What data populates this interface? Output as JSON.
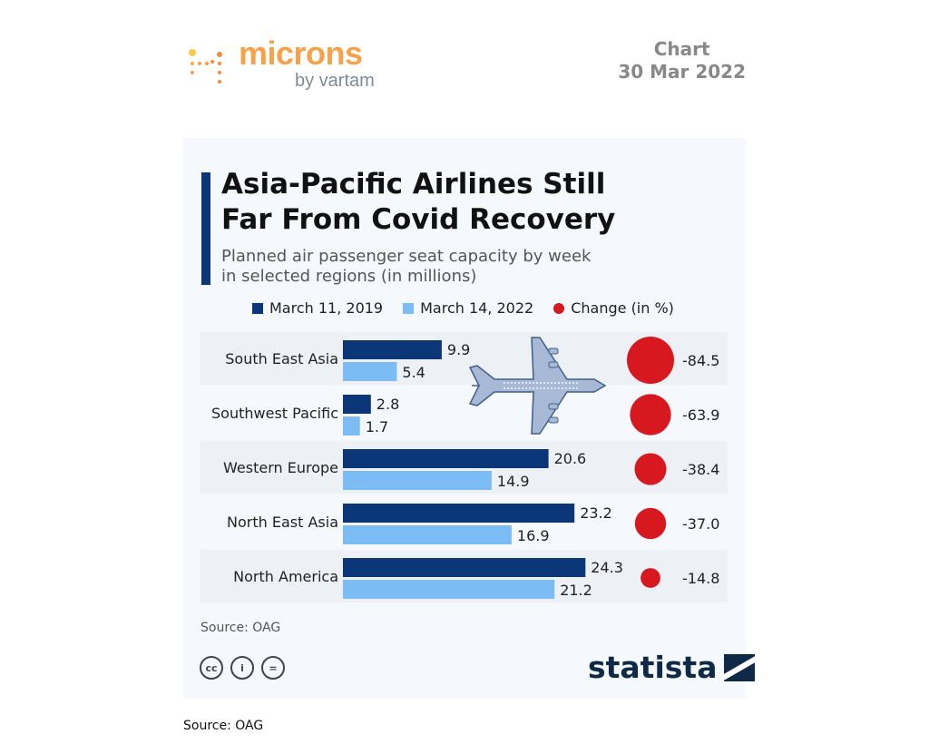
{
  "header": {
    "logo_name": "microns",
    "logo_sub": "by vartam",
    "kind": "Chart",
    "date": "30 Mar 2022"
  },
  "chart_data": {
    "type": "bar",
    "title": "Asia-Pacific Airlines Still Far From Covid Recovery",
    "title_line1": "Asia-Pacific Airlines Still",
    "title_line2": "Far From Covid Recovery",
    "subtitle_line1": "Planned air passenger seat capacity by week",
    "subtitle_line2": "in selected regions (in millions)",
    "legend": [
      "March 11, 2019",
      "March 14, 2022",
      "Change (in %)"
    ],
    "categories": [
      "South East Asia",
      "Southwest Pacific",
      "Western Europe",
      "North East Asia",
      "North America"
    ],
    "series": [
      {
        "name": "March 11, 2019",
        "values": [
          9.9,
          2.8,
          20.6,
          23.2,
          24.3
        ]
      },
      {
        "name": "March 14, 2022",
        "values": [
          5.4,
          1.7,
          14.9,
          16.9,
          21.2
        ]
      },
      {
        "name": "Change (in %)",
        "values": [
          -84.5,
          -63.9,
          -38.4,
          -37.0,
          -14.8
        ]
      }
    ],
    "colors": {
      "2019": "#0b3779",
      "2022": "#7cbcf5",
      "change": "#d7191f"
    },
    "source": "Source: OAG"
  },
  "footer": {
    "brand": "statista",
    "source": "Source: OAG"
  }
}
